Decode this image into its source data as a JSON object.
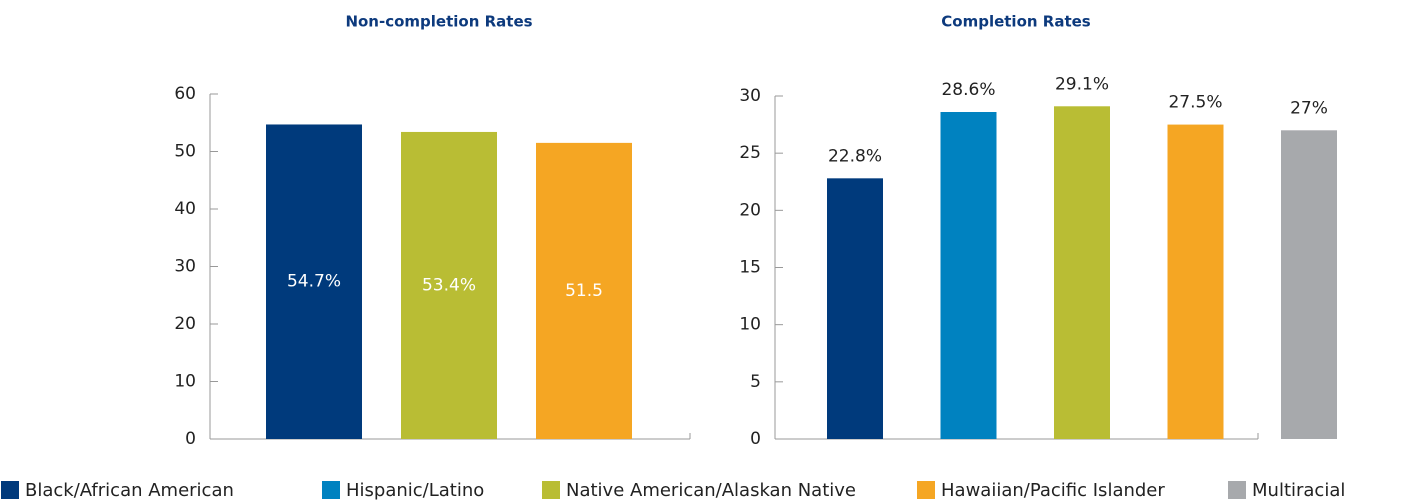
{
  "chart_data": [
    {
      "type": "bar",
      "title": "Non-completion Rates",
      "values": [
        54.7,
        53.4,
        51.5
      ],
      "value_labels": [
        "54.7%",
        "53.4%",
        "51.5"
      ],
      "colors": [
        "#003a7c",
        "#b9bd34",
        "#f5a623"
      ],
      "label_position": "inside",
      "ylim": [
        0,
        60
      ],
      "yticks": [
        0,
        10,
        20,
        30,
        40,
        50,
        60
      ]
    },
    {
      "type": "bar",
      "title": "Completion Rates",
      "values": [
        22.8,
        28.6,
        29.1,
        27.5,
        27
      ],
      "value_labels": [
        "22.8%",
        "28.6%",
        "29.1%",
        "27.5%",
        "27%"
      ],
      "colors": [
        "#003a7c",
        "#0082c0",
        "#b9bd34",
        "#f5a623",
        "#a7a9ac"
      ],
      "label_position": "above",
      "ylim": [
        0,
        30
      ],
      "yticks": [
        0,
        5,
        10,
        15,
        20,
        25,
        30
      ]
    }
  ],
  "legend": [
    {
      "name": "Black/African American",
      "color": "#003a7c"
    },
    {
      "name": "Hispanic/Latino",
      "color": "#0082c0"
    },
    {
      "name": "Native American/Alaskan Native",
      "color": "#b9bd34"
    },
    {
      "name": "Hawaiian/Pacific Islander",
      "color": "#f5a623"
    },
    {
      "name": "Multiracial",
      "color": "#a7a9ac"
    }
  ]
}
